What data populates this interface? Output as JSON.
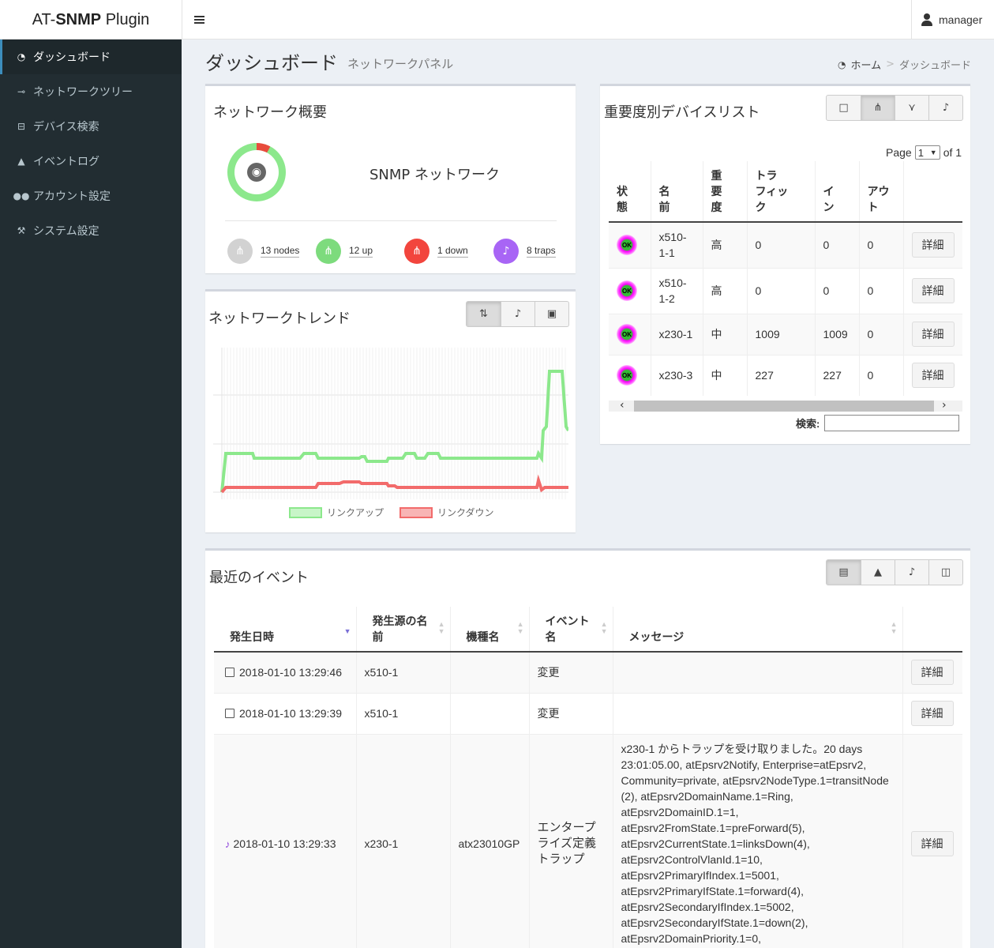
{
  "app": {
    "brand_prefix": "AT-",
    "brand_bold": "SNMP",
    "brand_suffix": " Plugin"
  },
  "user": {
    "name": "manager"
  },
  "sidebar": {
    "items": [
      {
        "label": "ダッシュボード",
        "icon": "dashboard-icon"
      },
      {
        "label": "ネットワークツリー",
        "icon": "sitemap-icon"
      },
      {
        "label": "デバイス検索",
        "icon": "hdd-icon"
      },
      {
        "label": "イベントログ",
        "icon": "bell-icon"
      },
      {
        "label": "アカウント設定",
        "icon": "users-icon"
      },
      {
        "label": "システム設定",
        "icon": "wrench-icon"
      }
    ]
  },
  "header": {
    "title": "ダッシュボード",
    "subtitle": "ネットワークパネル"
  },
  "breadcrumb": {
    "home": "ホーム",
    "sep": ">",
    "current": "ダッシュボード"
  },
  "overview": {
    "title": "ネットワーク概要",
    "network_name": "SNMP ネットワーク",
    "down_fraction": 0.077,
    "stats": [
      {
        "label": "13 nodes",
        "color": "#d2d2d2"
      },
      {
        "label": "12 up",
        "color": "#7ddb7d"
      },
      {
        "label": "1 down",
        "color": "#f2453d"
      },
      {
        "label": "8 traps",
        "color": "#a865f5"
      }
    ]
  },
  "trend": {
    "title": "ネットワークトレンド",
    "legend_up": "リンクアップ",
    "legend_down": "リンクダウン",
    "up_color": "#8ce88c",
    "down_color": "#f26b6b"
  },
  "devices": {
    "title": "重要度別デバイスリスト",
    "page_label": "Page",
    "page_value": "1",
    "page_of": "of 1",
    "columns": [
      "状態",
      "名前",
      "重要度",
      "トラフィック",
      "イン",
      "アウト"
    ],
    "column_lines": [
      [
        "状",
        "態"
      ],
      [
        "名",
        "前"
      ],
      [
        "重",
        "要",
        "度"
      ],
      [
        "トラ",
        "フィッ",
        "ク"
      ],
      [
        "イ",
        "ン"
      ],
      [
        "アウ",
        "ト"
      ]
    ],
    "rows": [
      {
        "status": "OK",
        "name": "x510-\n1-1",
        "severity": "高",
        "traffic": "0",
        "in": "0",
        "out": "0"
      },
      {
        "status": "OK",
        "name": "x510-\n1-2",
        "severity": "高",
        "traffic": "0",
        "in": "0",
        "out": "0"
      },
      {
        "status": "OK",
        "name": "x230-1",
        "severity": "中",
        "traffic": "1009",
        "in": "1009",
        "out": "0"
      },
      {
        "status": "OK",
        "name": "x230-3",
        "severity": "中",
        "traffic": "227",
        "in": "227",
        "out": "0"
      }
    ],
    "detail_label": "詳細",
    "search_label": "検索:"
  },
  "events": {
    "title": "最近のイベント",
    "columns": [
      "発生日時",
      "発生源の名前",
      "機種名",
      "イベント名",
      "メッセージ"
    ],
    "column_lines": [
      [
        "発生日時"
      ],
      [
        "発生源の名",
        "前"
      ],
      [
        "機種名"
      ],
      [
        "イベント",
        "名"
      ],
      [
        "メッセージ"
      ]
    ],
    "rows": [
      {
        "type": "change",
        "datetime": "2018-01-10 13:29:46",
        "source": "x510-1",
        "model": "",
        "event": "変更",
        "message": ""
      },
      {
        "type": "change",
        "datetime": "2018-01-10 13:29:39",
        "source": "x510-1",
        "model": "",
        "event": "変更",
        "message": ""
      },
      {
        "type": "trap",
        "datetime": "2018-01-10 13:29:33",
        "source": "x230-1",
        "model": "atx23010GP",
        "event": "エンタープライズ定義トラップ",
        "message": "x230-1 からトラップを受け取りました。20 days 23:01:05.00, atEpsrv2Notify, Enterprise=atEpsrv2, Community=private, atEpsrv2NodeType.1=transitNode (2), atEpsrv2DomainName.1=Ring, atEpsrv2DomainID.1=1, atEpsrv2FromState.1=preForward(5), atEpsrv2CurrentState.1=linksDown(4), atEpsrv2ControlVlanId.1=10, atEpsrv2PrimaryIfIndex.1=5001, atEpsrv2PrimaryIfState.1=forward(4), atEpsrv2SecondaryIfIndex.1=5002, atEpsrv2SecondaryIfState.1=down(2), atEpsrv2DomainPriority.1=0,"
      }
    ],
    "detail_label": "詳細"
  }
}
